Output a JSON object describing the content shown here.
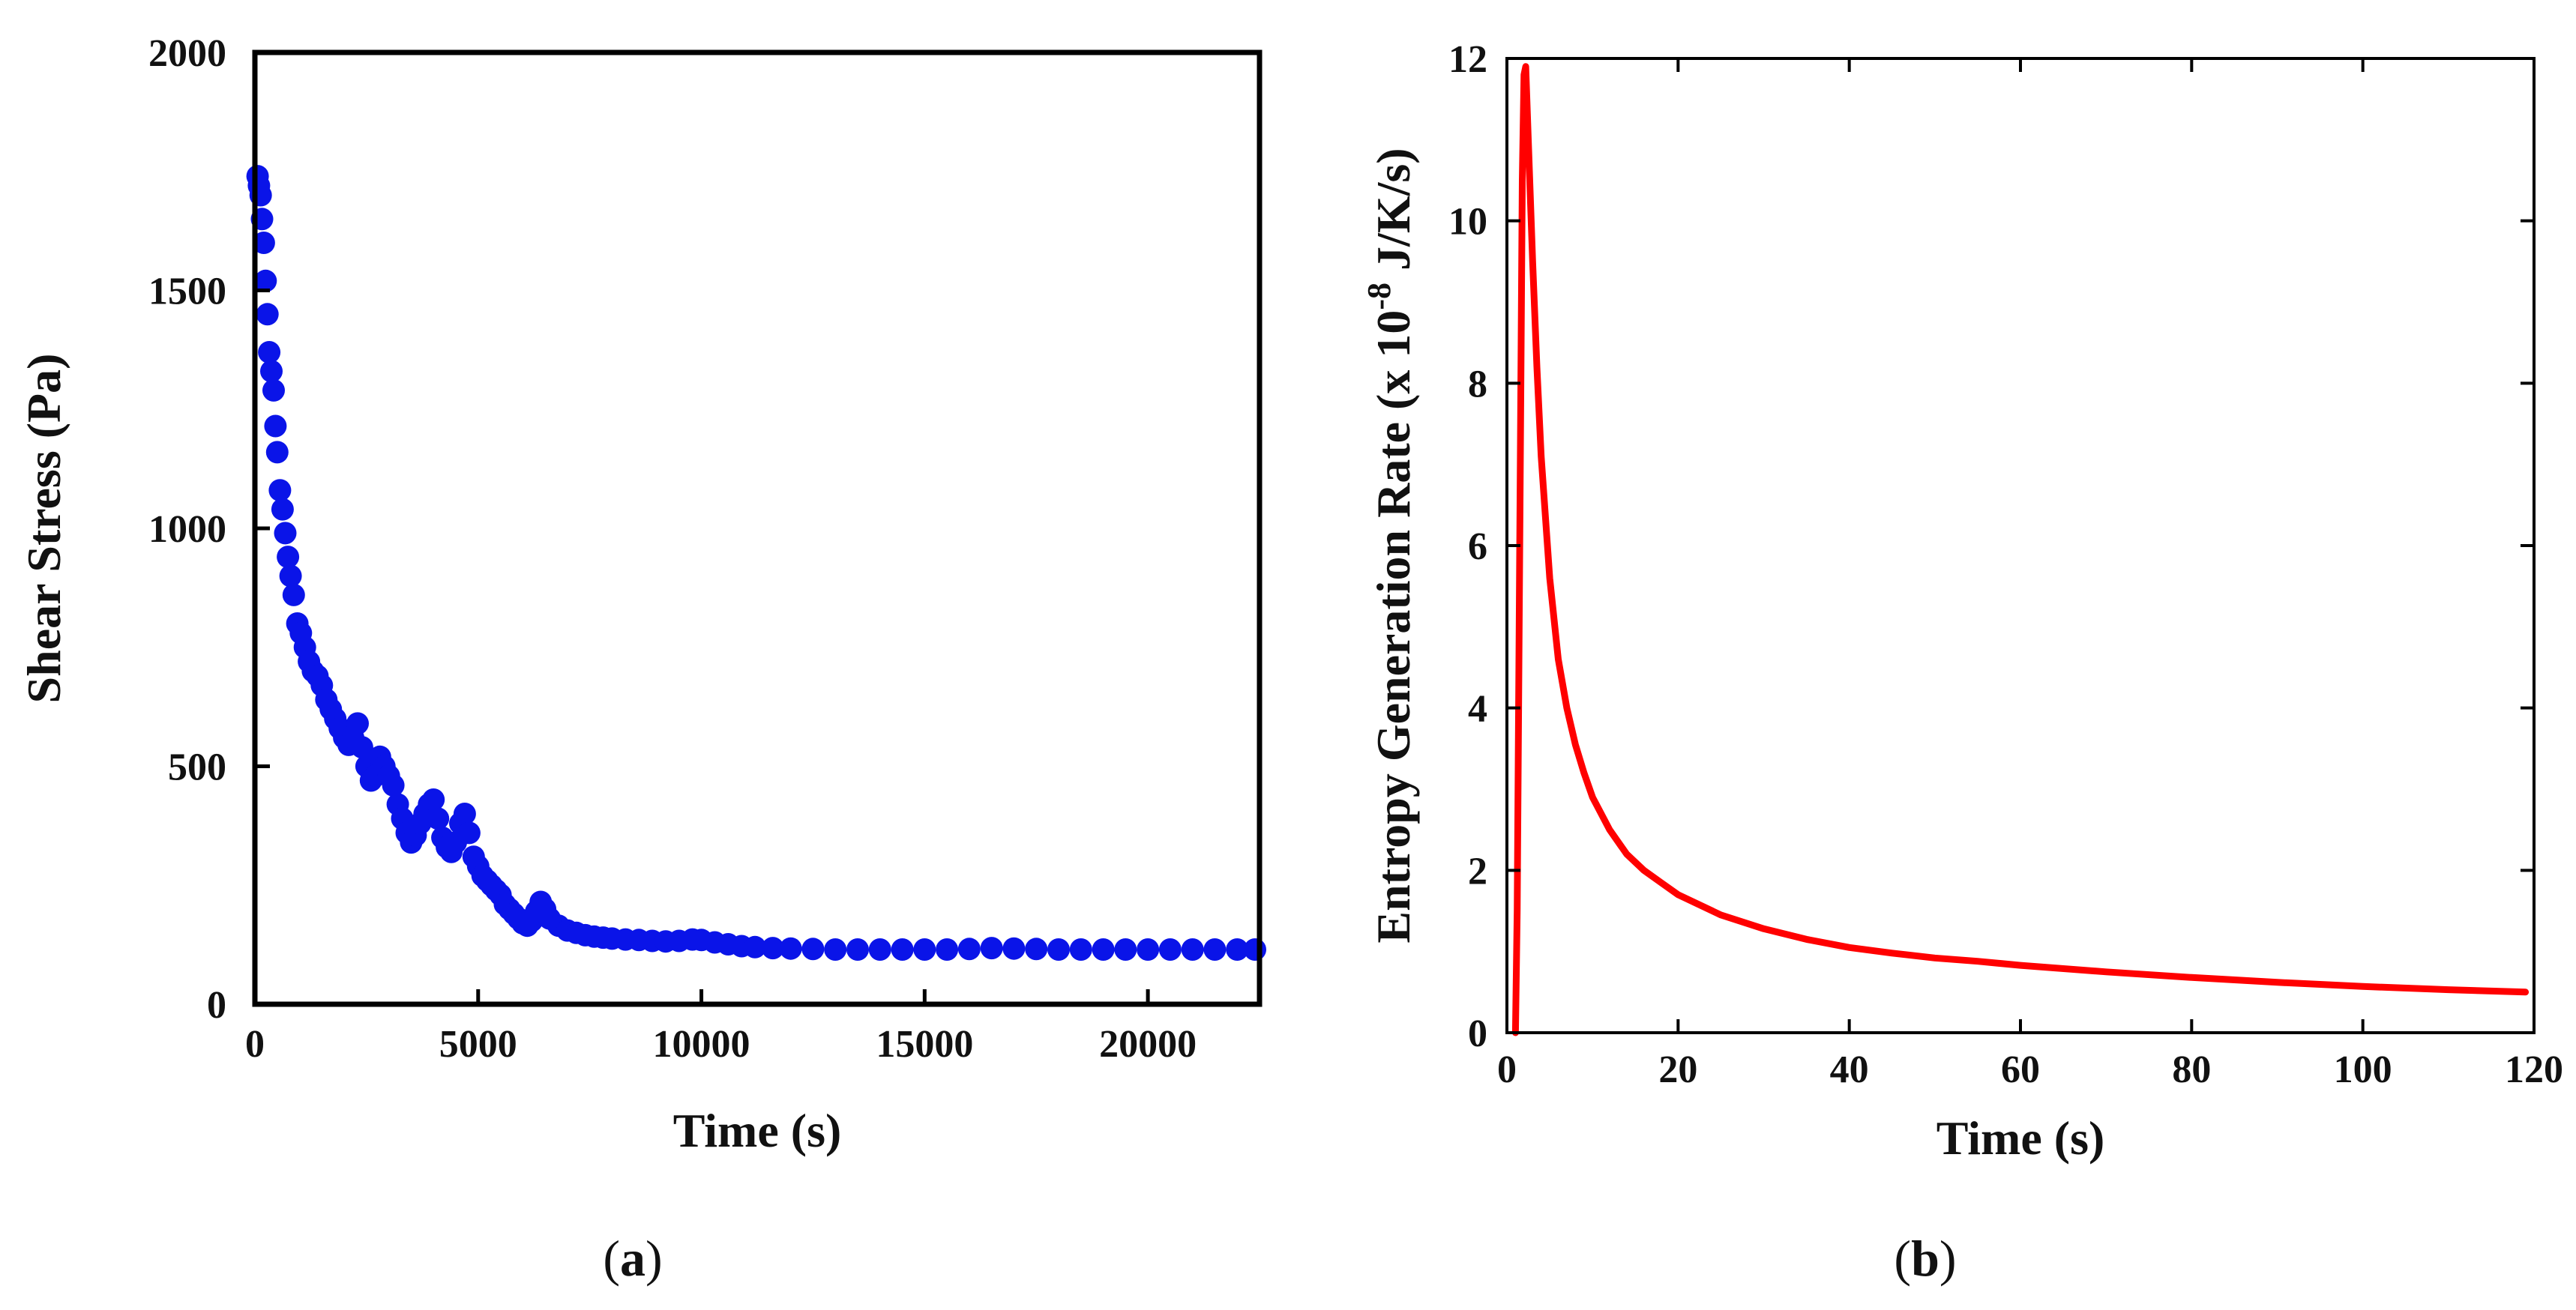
{
  "chart_data": [
    {
      "panel": "a",
      "type": "scatter",
      "title": "",
      "xlabel": "Time (s)",
      "ylabel": "Shear Stress (Pa)",
      "xlim": [
        0,
        22500
      ],
      "ylim": [
        0,
        2000
      ],
      "xticks": [
        0,
        5000,
        10000,
        15000,
        20000
      ],
      "yticks": [
        0,
        500,
        1000,
        1500,
        2000
      ],
      "grid": false,
      "color": "#0a14e8",
      "series": [
        {
          "name": "Shear stress",
          "points": [
            [
              60,
              1740
            ],
            [
              90,
              1720
            ],
            [
              130,
              1700
            ],
            [
              160,
              1650
            ],
            [
              200,
              1600
            ],
            [
              240,
              1520
            ],
            [
              280,
              1450
            ],
            [
              320,
              1370
            ],
            [
              370,
              1330
            ],
            [
              420,
              1290
            ],
            [
              460,
              1215
            ],
            [
              500,
              1160
            ],
            [
              560,
              1080
            ],
            [
              620,
              1040
            ],
            [
              680,
              990
            ],
            [
              740,
              940
            ],
            [
              800,
              900
            ],
            [
              870,
              860
            ],
            [
              950,
              800
            ],
            [
              1030,
              780
            ],
            [
              1120,
              750
            ],
            [
              1210,
              720
            ],
            [
              1300,
              700
            ],
            [
              1400,
              690
            ],
            [
              1500,
              670
            ],
            [
              1600,
              640
            ],
            [
              1700,
              620
            ],
            [
              1800,
              600
            ],
            [
              1900,
              580
            ],
            [
              2000,
              560
            ],
            [
              2100,
              545
            ],
            [
              2200,
              560
            ],
            [
              2300,
              590
            ],
            [
              2400,
              540
            ],
            [
              2500,
              500
            ],
            [
              2600,
              470
            ],
            [
              2700,
              480
            ],
            [
              2800,
              520
            ],
            [
              2900,
              500
            ],
            [
              3000,
              480
            ],
            [
              3100,
              460
            ],
            [
              3200,
              420
            ],
            [
              3300,
              390
            ],
            [
              3400,
              360
            ],
            [
              3500,
              340
            ],
            [
              3600,
              355
            ],
            [
              3700,
              380
            ],
            [
              3800,
              400
            ],
            [
              3900,
              420
            ],
            [
              4000,
              430
            ],
            [
              4100,
              390
            ],
            [
              4200,
              350
            ],
            [
              4300,
              330
            ],
            [
              4400,
              320
            ],
            [
              4500,
              340
            ],
            [
              4600,
              380
            ],
            [
              4700,
              400
            ],
            [
              4800,
              360
            ],
            [
              4900,
              310
            ],
            [
              5000,
              290
            ],
            [
              5100,
              270
            ],
            [
              5200,
              260
            ],
            [
              5300,
              250
            ],
            [
              5400,
              240
            ],
            [
              5500,
              230
            ],
            [
              5600,
              210
            ],
            [
              5700,
              200
            ],
            [
              5800,
              190
            ],
            [
              5900,
              180
            ],
            [
              6000,
              170
            ],
            [
              6100,
              165
            ],
            [
              6200,
              175
            ],
            [
              6300,
              195
            ],
            [
              6400,
              215
            ],
            [
              6500,
              200
            ],
            [
              6600,
              180
            ],
            [
              6800,
              165
            ],
            [
              7000,
              155
            ],
            [
              7200,
              150
            ],
            [
              7400,
              145
            ],
            [
              7600,
              142
            ],
            [
              7800,
              140
            ],
            [
              8000,
              138
            ],
            [
              8300,
              136
            ],
            [
              8600,
              135
            ],
            [
              8900,
              133
            ],
            [
              9200,
              132
            ],
            [
              9500,
              133
            ],
            [
              9800,
              136
            ],
            [
              10000,
              135
            ],
            [
              10300,
              130
            ],
            [
              10600,
              126
            ],
            [
              10900,
              122
            ],
            [
              11200,
              120
            ],
            [
              11600,
              118
            ],
            [
              12000,
              117
            ],
            [
              12500,
              116
            ],
            [
              13000,
              115
            ],
            [
              13500,
              115
            ],
            [
              14000,
              115
            ],
            [
              14500,
              115
            ],
            [
              15000,
              115
            ],
            [
              15500,
              115
            ],
            [
              16000,
              116
            ],
            [
              16500,
              118
            ],
            [
              17000,
              117
            ],
            [
              17500,
              116
            ],
            [
              18000,
              115
            ],
            [
              18500,
              115
            ],
            [
              19000,
              115
            ],
            [
              19500,
              115
            ],
            [
              20000,
              115
            ],
            [
              20500,
              115
            ],
            [
              21000,
              115
            ],
            [
              21500,
              115
            ],
            [
              22000,
              115
            ],
            [
              22400,
              115
            ]
          ]
        }
      ],
      "caption_label": "a"
    },
    {
      "panel": "b",
      "type": "line",
      "title": "",
      "xlabel": "Time (s)",
      "ylabel": "Entropy Generation Rate (x 10",
      "ylabel_exponent": "-8",
      "ylabel_unit": " J/K/s)",
      "xlim": [
        0,
        120
      ],
      "ylim": [
        0,
        12
      ],
      "xticks": [
        0,
        20,
        40,
        60,
        80,
        100,
        120
      ],
      "yticks": [
        0,
        2,
        4,
        6,
        8,
        10,
        12
      ],
      "grid": false,
      "color": "#ff0000",
      "series": [
        {
          "name": "Entropy generation rate",
          "x": [
            1.0,
            1.2,
            1.5,
            1.8,
            2.0,
            2.2,
            2.5,
            3,
            3.5,
            4,
            5,
            6,
            7,
            8,
            9,
            10,
            12,
            14,
            16,
            18,
            20,
            25,
            30,
            35,
            40,
            45,
            50,
            55,
            60,
            70,
            80,
            90,
            100,
            110,
            119
          ],
          "y": [
            0.0,
            1.5,
            6.0,
            10.5,
            11.8,
            11.9,
            11.0,
            9.5,
            8.2,
            7.1,
            5.6,
            4.6,
            4.0,
            3.55,
            3.2,
            2.9,
            2.5,
            2.2,
            2.0,
            1.85,
            1.7,
            1.45,
            1.28,
            1.15,
            1.05,
            0.98,
            0.92,
            0.88,
            0.83,
            0.75,
            0.68,
            0.62,
            0.57,
            0.53,
            0.5
          ]
        }
      ],
      "caption_label": "b"
    }
  ]
}
